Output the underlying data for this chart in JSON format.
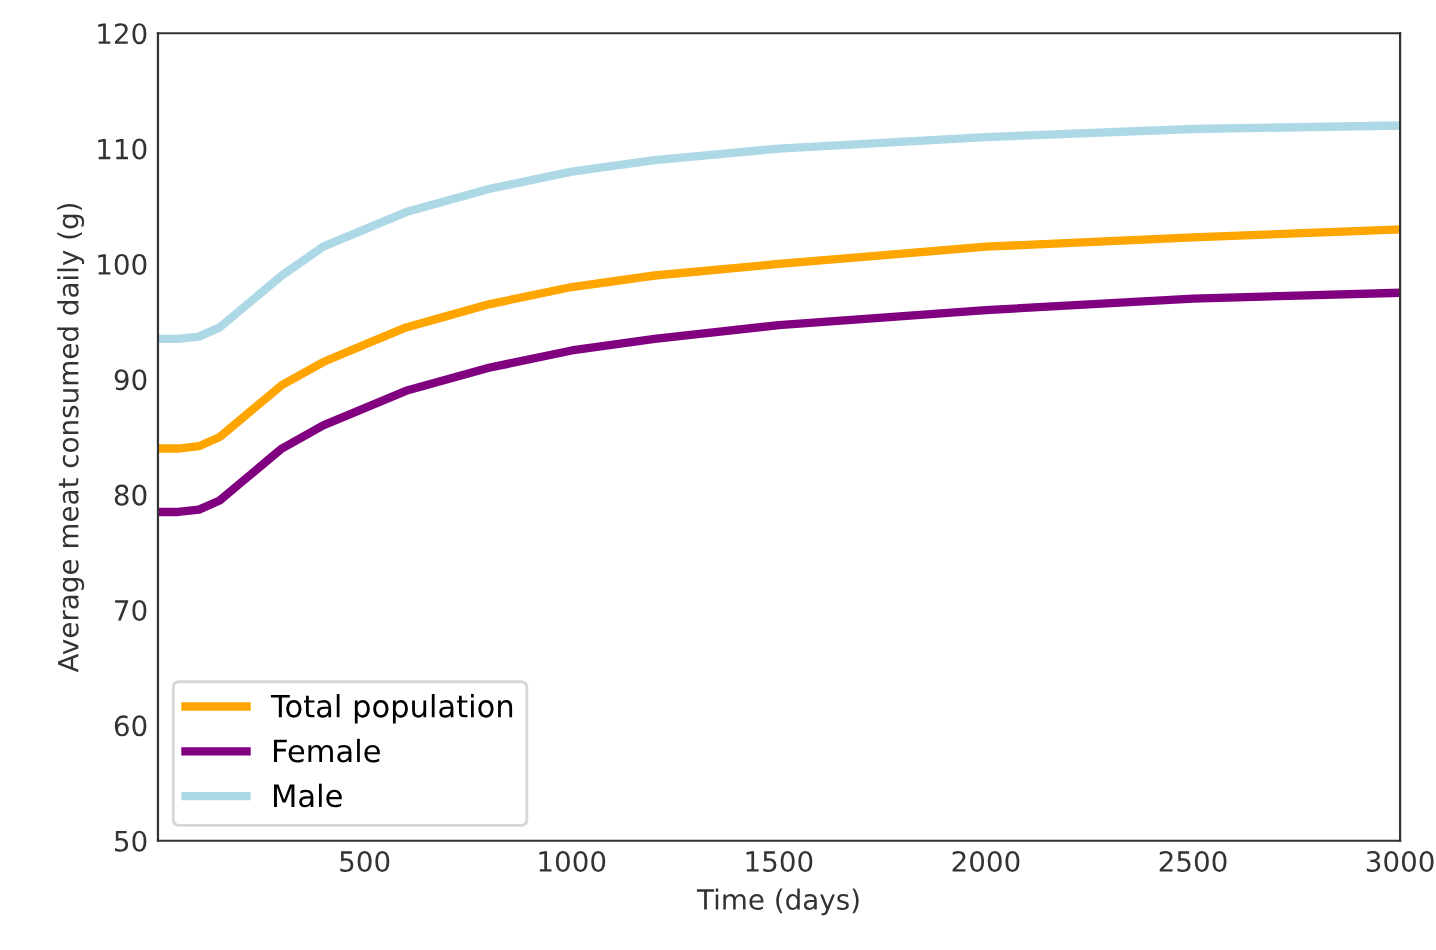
{
  "chart_data": {
    "type": "line",
    "xlabel": "Time (days)",
    "ylabel": "Average meat consumed daily (g)",
    "xlim": [
      1,
      3000
    ],
    "ylim": [
      50,
      120
    ],
    "xticks": [
      500,
      1000,
      1500,
      2000,
      2500,
      3000
    ],
    "yticks": [
      50,
      60,
      70,
      80,
      90,
      100,
      110,
      120
    ],
    "grid": false,
    "legend": "bottom left",
    "x": [
      1,
      50,
      100,
      150,
      200,
      300,
      400,
      500,
      600,
      700,
      800,
      1000,
      1200,
      1500,
      2000,
      2500,
      3000
    ],
    "series": [
      {
        "name": "Total population",
        "color": "#ffa500",
        "values": [
          84,
          84,
          84.2,
          85,
          86.5,
          89.5,
          91.5,
          93,
          94.5,
          95.5,
          96.5,
          98,
          99,
          100,
          101.5,
          102.3,
          103
        ]
      },
      {
        "name": "Female",
        "color": "#800080",
        "values": [
          78.5,
          78.5,
          78.7,
          79.5,
          81,
          84,
          86,
          87.5,
          89,
          90,
          91,
          92.5,
          93.5,
          94.7,
          96,
          97,
          97.5
        ]
      },
      {
        "name": "Male",
        "color": "#add8e6",
        "values": [
          93.5,
          93.5,
          93.7,
          94.5,
          96,
          99,
          101.5,
          103,
          104.5,
          105.5,
          106.5,
          108,
          109,
          110,
          111,
          111.7,
          112
        ]
      }
    ]
  }
}
